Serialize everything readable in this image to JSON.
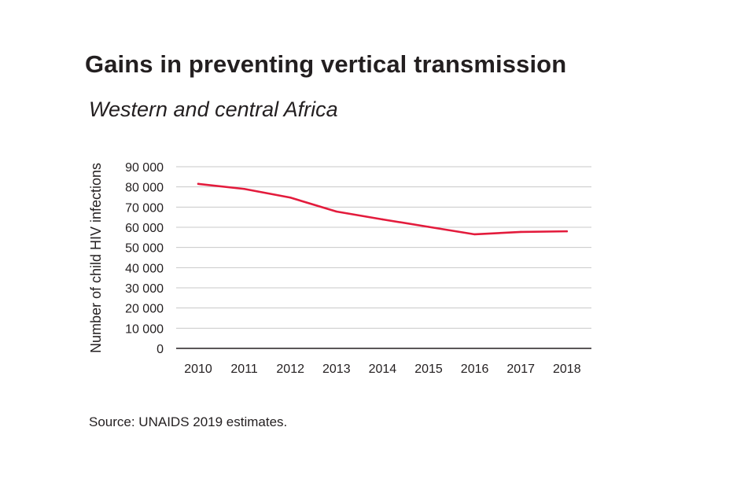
{
  "header": {
    "title": "Gains in preventing vertical transmission",
    "subtitle": "Western and central Africa"
  },
  "footer": {
    "source": "Source: UNAIDS 2019 estimates."
  },
  "chart_data": {
    "type": "line",
    "title": "Gains in preventing vertical transmission",
    "subtitle": "Western and central Africa",
    "xlabel": "",
    "ylabel": "Number of child HIV infections",
    "categories": [
      "2010",
      "2011",
      "2012",
      "2013",
      "2014",
      "2015",
      "2016",
      "2017",
      "2018"
    ],
    "ytick_labels": [
      "0",
      "10 000",
      "20 000",
      "30 000",
      "40 000",
      "50 000",
      "60 000",
      "70 000",
      "80 000",
      "90 000"
    ],
    "yticks": [
      0,
      10000,
      20000,
      30000,
      40000,
      50000,
      60000,
      70000,
      80000,
      90000
    ],
    "ylim": [
      0,
      90000
    ],
    "grid": true,
    "series": [
      {
        "name": "",
        "color": "#e31b3c",
        "values": [
          81500,
          79000,
          74700,
          67800,
          63900,
          60200,
          56500,
          57700,
          58000
        ]
      }
    ]
  }
}
